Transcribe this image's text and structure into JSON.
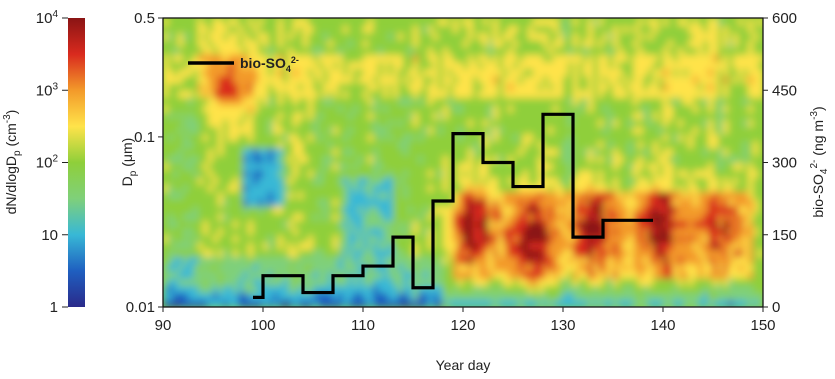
{
  "chart_data": {
    "type": "heatmap",
    "title": "",
    "xlabel": "Year day",
    "xlim": [
      90,
      150
    ],
    "x_ticks": [
      "90",
      "100",
      "110",
      "120",
      "130",
      "140",
      "150"
    ],
    "y_left": {
      "label": "D",
      "label_sub": "p",
      "label_unit": " (μm)",
      "scale": "log",
      "ylim": [
        0.01,
        0.5
      ],
      "ticks": [
        {
          "value": 0.5,
          "label": "0.5"
        },
        {
          "value": 0.1,
          "label": "0.1"
        },
        {
          "value": 0.01,
          "label": "0.01"
        }
      ]
    },
    "y_right": {
      "label": "bio-SO",
      "label_sub": "4",
      "label_sup": "2-",
      "label_unit": " (ng m",
      "label_unit_sup": "-3",
      "label_close": ")",
      "ylim": [
        0,
        600
      ],
      "ticks": [
        "0",
        "150",
        "300",
        "450",
        "600"
      ]
    },
    "colorbar": {
      "label_prefix": "dN/dlogD",
      "label_sub": "p",
      "label_unit": " (cm",
      "label_unit_sup": "-3",
      "label_close": ")",
      "scale": "log",
      "range": [
        1,
        10000
      ],
      "ticks": [
        {
          "base": "10",
          "sup": "4"
        },
        {
          "base": "10",
          "sup": "3"
        },
        {
          "base": "10",
          "sup": "2"
        },
        {
          "base": "10",
          "sup": ""
        },
        {
          "base": "1",
          "sup": ""
        }
      ],
      "colors": [
        "#2a2a8a",
        "#1f5fc0",
        "#38b8d6",
        "#7fd07a",
        "#8fcf3a",
        "#ffe34a",
        "#f39a2a",
        "#d92a1e",
        "#8a1414"
      ]
    },
    "series": [
      {
        "name": "bio-SO",
        "name_sub": "4",
        "name_sup": "2-",
        "step_edges": [
          99,
          100,
          104,
          107,
          110,
          113,
          115,
          117,
          119,
          122,
          125,
          128,
          131,
          134,
          137,
          139
        ],
        "values": [
          20,
          65,
          30,
          65,
          85,
          145,
          40,
          220,
          360,
          300,
          250,
          400,
          145,
          180,
          180
        ]
      }
    ],
    "heatmap_description_hotspots": [
      {
        "day": 97,
        "d": 0.2,
        "level": "high"
      },
      {
        "day": 121,
        "d": 0.03,
        "level": "very-high"
      },
      {
        "day": 127,
        "d": 0.025,
        "level": "very-high"
      },
      {
        "day": 133,
        "d": 0.03,
        "level": "very-high"
      },
      {
        "day": 139.5,
        "d": 0.03,
        "level": "very-high"
      },
      {
        "day": 146,
        "d": 0.03,
        "level": "high"
      }
    ]
  }
}
